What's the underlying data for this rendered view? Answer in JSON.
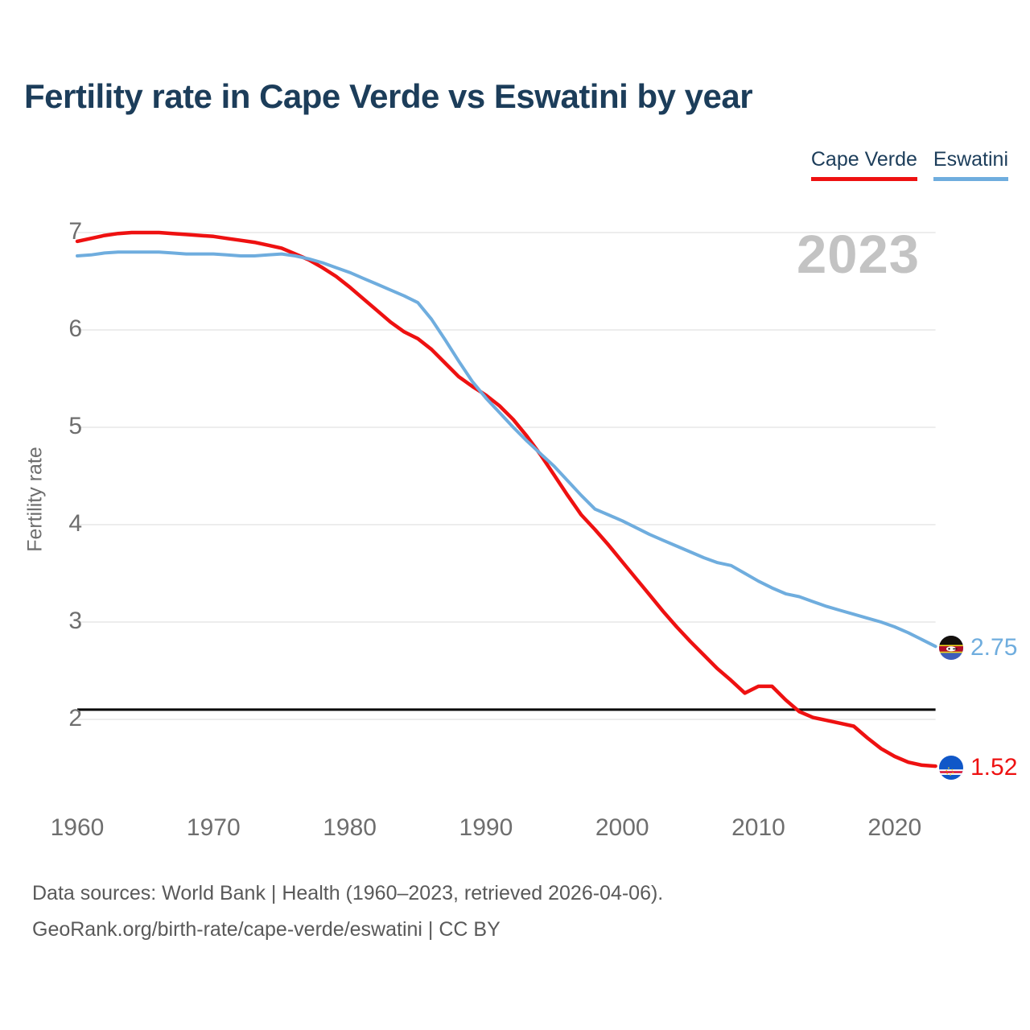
{
  "title": "Fertility rate in Cape Verde vs Eswatini by year",
  "watermark": "2023",
  "legend": [
    {
      "label": "Cape Verde",
      "color": "#ee1111"
    },
    {
      "label": "Eswatini",
      "color": "#6fadde"
    }
  ],
  "y_axis": {
    "title": "Fertility rate",
    "ticks": [
      7,
      6,
      5,
      4,
      3,
      2
    ]
  },
  "x_axis": {
    "ticks": [
      1960,
      1970,
      1980,
      1990,
      2000,
      2010,
      2020
    ]
  },
  "reference_line": {
    "value": 2.1,
    "color": "#000000"
  },
  "footer": {
    "line1": "Data sources: World Bank | Health (1960–2023, retrieved 2026-04-06).",
    "line2": "GeoRank.org/birth-rate/cape-verde/eswatini | CC BY"
  },
  "chart_data": {
    "type": "line",
    "title": "Fertility rate in Cape Verde vs Eswatini by year",
    "xlabel": "",
    "ylabel": "Fertility rate",
    "ylim": [
      1.3,
      7.2
    ],
    "xlim": [
      1960,
      2023
    ],
    "grid": true,
    "legend_position": "top-right",
    "x": [
      1960,
      1961,
      1962,
      1963,
      1964,
      1965,
      1966,
      1967,
      1968,
      1969,
      1970,
      1971,
      1972,
      1973,
      1974,
      1975,
      1976,
      1977,
      1978,
      1979,
      1980,
      1981,
      1982,
      1983,
      1984,
      1985,
      1986,
      1987,
      1988,
      1989,
      1990,
      1991,
      1992,
      1993,
      1994,
      1995,
      1996,
      1997,
      1998,
      1999,
      2000,
      2001,
      2002,
      2003,
      2004,
      2005,
      2006,
      2007,
      2008,
      2009,
      2010,
      2011,
      2012,
      2013,
      2014,
      2015,
      2016,
      2017,
      2018,
      2019,
      2020,
      2021,
      2022,
      2023
    ],
    "series": [
      {
        "name": "Cape Verde",
        "color": "#ee1111",
        "end_label": "1.52",
        "values": [
          6.91,
          6.94,
          6.97,
          6.99,
          7.0,
          7.0,
          7.0,
          6.99,
          6.98,
          6.97,
          6.96,
          6.94,
          6.92,
          6.9,
          6.87,
          6.84,
          6.78,
          6.72,
          6.64,
          6.55,
          6.44,
          6.32,
          6.2,
          6.08,
          5.98,
          5.91,
          5.8,
          5.66,
          5.52,
          5.42,
          5.33,
          5.22,
          5.08,
          4.91,
          4.72,
          4.51,
          4.3,
          4.1,
          3.95,
          3.79,
          3.62,
          3.45,
          3.28,
          3.11,
          2.95,
          2.8,
          2.66,
          2.52,
          2.4,
          2.27,
          2.34,
          2.34,
          2.2,
          2.08,
          2.02,
          1.99,
          1.96,
          1.93,
          1.81,
          1.7,
          1.62,
          1.56,
          1.53,
          1.52
        ]
      },
      {
        "name": "Eswatini",
        "color": "#6fadde",
        "end_label": "2.75",
        "values": [
          6.76,
          6.77,
          6.79,
          6.8,
          6.8,
          6.8,
          6.8,
          6.79,
          6.78,
          6.78,
          6.78,
          6.77,
          6.76,
          6.76,
          6.77,
          6.78,
          6.76,
          6.73,
          6.69,
          6.64,
          6.59,
          6.53,
          6.47,
          6.41,
          6.35,
          6.28,
          6.11,
          5.9,
          5.68,
          5.47,
          5.3,
          5.15,
          5.0,
          4.86,
          4.73,
          4.6,
          4.45,
          4.3,
          4.16,
          4.1,
          4.04,
          3.97,
          3.9,
          3.84,
          3.78,
          3.72,
          3.66,
          3.61,
          3.58,
          3.5,
          3.42,
          3.35,
          3.29,
          3.26,
          3.21,
          3.16,
          3.12,
          3.08,
          3.04,
          3.0,
          2.95,
          2.89,
          2.82,
          2.75
        ]
      }
    ]
  }
}
